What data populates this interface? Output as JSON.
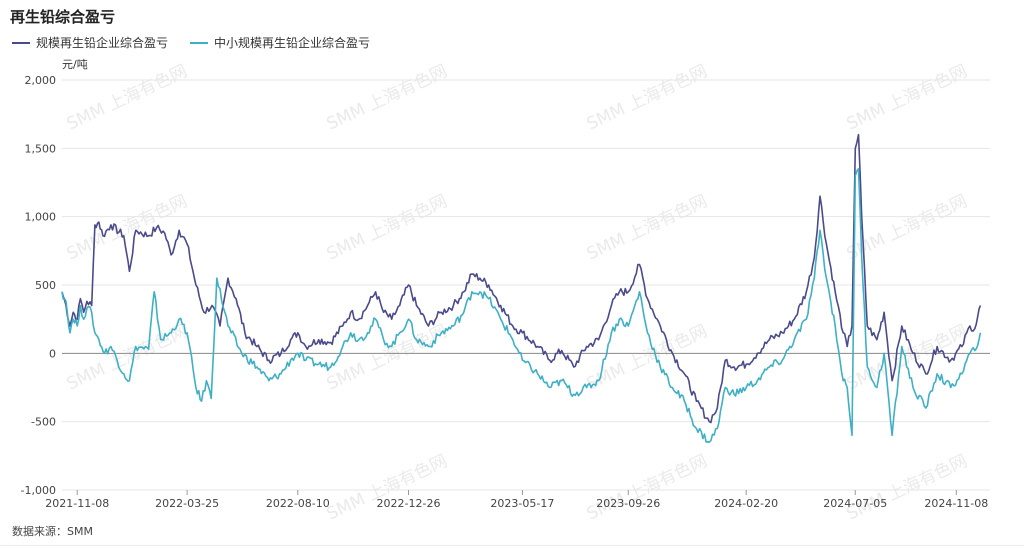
{
  "chart_data": {
    "type": "line",
    "title": "再生铅综合盈亏",
    "unit": "元/吨",
    "source": "数据来源：SMM",
    "watermark": "SMM 上海有色网",
    "ylim": [
      -1000,
      2000
    ],
    "yticks": [
      -1000,
      -500,
      0,
      500,
      1000,
      1500,
      2000
    ],
    "ytick_labels": [
      "-1,000",
      "-500",
      "0",
      "500",
      "1,000",
      "1,500",
      "2,000"
    ],
    "xlim": [
      "2021-10-20",
      "2024-12-20"
    ],
    "xticks": [
      "2021-11-08",
      "2022-03-25",
      "2022-08-10",
      "2022-12-26",
      "2023-05-17",
      "2023-09-26",
      "2024-02-20",
      "2024-07-05",
      "2024-11-08"
    ],
    "grid": true,
    "legend_position": "top-left",
    "series": [
      {
        "name": "规模再生铅企业综合盈亏",
        "color": "#4a4a8c",
        "points": [
          [
            "2021-10-20",
            450
          ],
          [
            "2021-10-25",
            350
          ],
          [
            "2021-10-30",
            200
          ],
          [
            "2021-11-03",
            300
          ],
          [
            "2021-11-08",
            250
          ],
          [
            "2021-11-12",
            400
          ],
          [
            "2021-11-16",
            300
          ],
          [
            "2021-11-20",
            380
          ],
          [
            "2021-11-26",
            350
          ],
          [
            "2021-11-30",
            940
          ],
          [
            "2021-12-05",
            960
          ],
          [
            "2021-12-10",
            860
          ],
          [
            "2021-12-20",
            940
          ],
          [
            "2022-01-05",
            860
          ],
          [
            "2022-01-12",
            600
          ],
          [
            "2022-01-20",
            900
          ],
          [
            "2022-02-05",
            860
          ],
          [
            "2022-02-15",
            920
          ],
          [
            "2022-02-25",
            880
          ],
          [
            "2022-03-05",
            720
          ],
          [
            "2022-03-15",
            900
          ],
          [
            "2022-03-25",
            800
          ],
          [
            "2022-04-05",
            500
          ],
          [
            "2022-04-15",
            300
          ],
          [
            "2022-04-25",
            350
          ],
          [
            "2022-05-05",
            200
          ],
          [
            "2022-05-15",
            550
          ],
          [
            "2022-05-25",
            400
          ],
          [
            "2022-06-05",
            150
          ],
          [
            "2022-06-20",
            50
          ],
          [
            "2022-07-05",
            -50
          ],
          [
            "2022-07-20",
            0
          ],
          [
            "2022-08-01",
            100
          ],
          [
            "2022-08-10",
            150
          ],
          [
            "2022-08-20",
            50
          ],
          [
            "2022-09-05",
            100
          ],
          [
            "2022-09-20",
            80
          ],
          [
            "2022-10-05",
            200
          ],
          [
            "2022-10-15",
            300
          ],
          [
            "2022-10-25",
            250
          ],
          [
            "2022-11-05",
            350
          ],
          [
            "2022-11-15",
            450
          ],
          [
            "2022-11-25",
            300
          ],
          [
            "2022-12-05",
            250
          ],
          [
            "2022-12-15",
            350
          ],
          [
            "2022-12-26",
            500
          ],
          [
            "2023-01-05",
            350
          ],
          [
            "2023-01-20",
            200
          ],
          [
            "2023-02-05",
            300
          ],
          [
            "2023-02-20",
            350
          ],
          [
            "2023-03-05",
            450
          ],
          [
            "2023-03-15",
            580
          ],
          [
            "2023-03-25",
            550
          ],
          [
            "2023-04-05",
            500
          ],
          [
            "2023-04-20",
            350
          ],
          [
            "2023-05-05",
            200
          ],
          [
            "2023-05-17",
            150
          ],
          [
            "2023-06-05",
            50
          ],
          [
            "2023-06-20",
            -50
          ],
          [
            "2023-07-05",
            20
          ],
          [
            "2023-07-20",
            -100
          ],
          [
            "2023-08-05",
            50
          ],
          [
            "2023-08-20",
            100
          ],
          [
            "2023-09-05",
            350
          ],
          [
            "2023-09-15",
            450
          ],
          [
            "2023-09-26",
            450
          ],
          [
            "2023-10-10",
            650
          ],
          [
            "2023-10-20",
            400
          ],
          [
            "2023-11-05",
            200
          ],
          [
            "2023-11-20",
            0
          ],
          [
            "2023-12-05",
            -150
          ],
          [
            "2023-12-20",
            -350
          ],
          [
            "2024-01-05",
            -500
          ],
          [
            "2024-01-15",
            -400
          ],
          [
            "2024-01-25",
            -50
          ],
          [
            "2024-02-05",
            -100
          ],
          [
            "2024-02-20",
            -80
          ],
          [
            "2024-03-05",
            0
          ],
          [
            "2024-03-20",
            100
          ],
          [
            "2024-04-05",
            150
          ],
          [
            "2024-04-20",
            250
          ],
          [
            "2024-05-05",
            450
          ],
          [
            "2024-05-15",
            700
          ],
          [
            "2024-05-22",
            1150
          ],
          [
            "2024-05-30",
            800
          ],
          [
            "2024-06-10",
            450
          ],
          [
            "2024-06-20",
            150
          ],
          [
            "2024-06-25",
            50
          ],
          [
            "2024-07-01",
            200
          ],
          [
            "2024-07-05",
            1500
          ],
          [
            "2024-07-09",
            1600
          ],
          [
            "2024-07-13",
            1000
          ],
          [
            "2024-07-20",
            200
          ],
          [
            "2024-08-01",
            100
          ],
          [
            "2024-08-10",
            300
          ],
          [
            "2024-08-20",
            -200
          ],
          [
            "2024-09-01",
            200
          ],
          [
            "2024-09-15",
            0
          ],
          [
            "2024-10-01",
            -150
          ],
          [
            "2024-10-15",
            50
          ],
          [
            "2024-11-01",
            -50
          ],
          [
            "2024-11-15",
            50
          ],
          [
            "2024-11-25",
            200
          ],
          [
            "2024-12-01",
            180
          ],
          [
            "2024-12-08",
            350
          ]
        ]
      },
      {
        "name": "中小规模再生铅企业综合盈亏",
        "color": "#3fb0c4",
        "points": [
          [
            "2021-10-20",
            450
          ],
          [
            "2021-10-25",
            380
          ],
          [
            "2021-10-30",
            150
          ],
          [
            "2021-11-03",
            250
          ],
          [
            "2021-11-08",
            200
          ],
          [
            "2021-11-12",
            350
          ],
          [
            "2021-11-16",
            250
          ],
          [
            "2021-11-20",
            330
          ],
          [
            "2021-11-26",
            300
          ],
          [
            "2021-11-30",
            150
          ],
          [
            "2021-12-05",
            100
          ],
          [
            "2021-12-12",
            0
          ],
          [
            "2021-12-20",
            50
          ],
          [
            "2022-01-05",
            -150
          ],
          [
            "2022-01-12",
            -200
          ],
          [
            "2022-01-20",
            50
          ],
          [
            "2022-02-05",
            30
          ],
          [
            "2022-02-12",
            450
          ],
          [
            "2022-02-20",
            100
          ],
          [
            "2022-03-05",
            150
          ],
          [
            "2022-03-15",
            250
          ],
          [
            "2022-03-25",
            150
          ],
          [
            "2022-04-05",
            -250
          ],
          [
            "2022-04-12",
            -350
          ],
          [
            "2022-04-18",
            -200
          ],
          [
            "2022-04-24",
            -330
          ],
          [
            "2022-05-01",
            550
          ],
          [
            "2022-05-15",
            200
          ],
          [
            "2022-06-01",
            0
          ],
          [
            "2022-06-20",
            -100
          ],
          [
            "2022-07-05",
            -200
          ],
          [
            "2022-07-20",
            -150
          ],
          [
            "2022-08-01",
            -50
          ],
          [
            "2022-08-10",
            0
          ],
          [
            "2022-08-20",
            -50
          ],
          [
            "2022-09-05",
            -80
          ],
          [
            "2022-09-20",
            -100
          ],
          [
            "2022-10-05",
            50
          ],
          [
            "2022-10-15",
            150
          ],
          [
            "2022-10-25",
            100
          ],
          [
            "2022-11-05",
            150
          ],
          [
            "2022-11-15",
            250
          ],
          [
            "2022-11-25",
            100
          ],
          [
            "2022-12-05",
            50
          ],
          [
            "2022-12-15",
            150
          ],
          [
            "2022-12-26",
            250
          ],
          [
            "2023-01-05",
            100
          ],
          [
            "2023-01-20",
            50
          ],
          [
            "2023-02-05",
            150
          ],
          [
            "2023-02-20",
            200
          ],
          [
            "2023-03-05",
            300
          ],
          [
            "2023-03-15",
            450
          ],
          [
            "2023-03-25",
            450
          ],
          [
            "2023-04-05",
            400
          ],
          [
            "2023-04-20",
            250
          ],
          [
            "2023-05-05",
            100
          ],
          [
            "2023-05-17",
            -50
          ],
          [
            "2023-06-05",
            -150
          ],
          [
            "2023-06-20",
            -250
          ],
          [
            "2023-07-05",
            -200
          ],
          [
            "2023-07-20",
            -300
          ],
          [
            "2023-08-05",
            -250
          ],
          [
            "2023-08-20",
            -200
          ],
          [
            "2023-09-05",
            150
          ],
          [
            "2023-09-15",
            250
          ],
          [
            "2023-09-26",
            200
          ],
          [
            "2023-10-10",
            450
          ],
          [
            "2023-10-20",
            150
          ],
          [
            "2023-11-05",
            -100
          ],
          [
            "2023-11-20",
            -250
          ],
          [
            "2023-12-05",
            -350
          ],
          [
            "2023-12-20",
            -550
          ],
          [
            "2024-01-05",
            -650
          ],
          [
            "2024-01-15",
            -550
          ],
          [
            "2024-01-25",
            -250
          ],
          [
            "2024-02-05",
            -300
          ],
          [
            "2024-02-20",
            -250
          ],
          [
            "2024-03-05",
            -200
          ],
          [
            "2024-03-20",
            -100
          ],
          [
            "2024-04-05",
            -50
          ],
          [
            "2024-04-20",
            100
          ],
          [
            "2024-05-05",
            250
          ],
          [
            "2024-05-15",
            550
          ],
          [
            "2024-05-22",
            900
          ],
          [
            "2024-05-30",
            550
          ],
          [
            "2024-06-10",
            200
          ],
          [
            "2024-06-20",
            -200
          ],
          [
            "2024-06-25",
            -250
          ],
          [
            "2024-07-01",
            -600
          ],
          [
            "2024-07-05",
            1300
          ],
          [
            "2024-07-09",
            1350
          ],
          [
            "2024-07-13",
            700
          ],
          [
            "2024-07-20",
            -100
          ],
          [
            "2024-08-01",
            -250
          ],
          [
            "2024-08-10",
            0
          ],
          [
            "2024-08-20",
            -600
          ],
          [
            "2024-09-01",
            50
          ],
          [
            "2024-09-15",
            -250
          ],
          [
            "2024-10-01",
            -400
          ],
          [
            "2024-10-15",
            -150
          ],
          [
            "2024-11-01",
            -250
          ],
          [
            "2024-11-15",
            -150
          ],
          [
            "2024-11-25",
            0
          ],
          [
            "2024-12-01",
            20
          ],
          [
            "2024-12-08",
            150
          ]
        ]
      }
    ]
  }
}
